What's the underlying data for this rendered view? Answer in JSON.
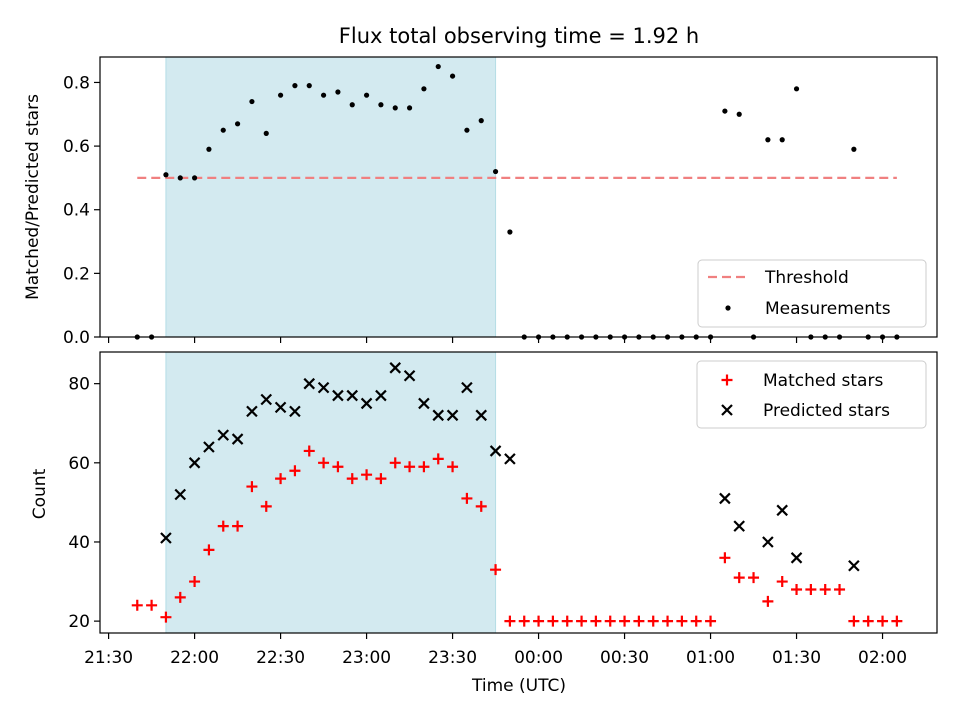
{
  "chart_data": [
    {
      "type": "scatter",
      "title": "Flux total observing time = 1.92 h",
      "ylabel": "Matched/Predicted stars",
      "xlabel": "",
      "xlim": [
        "21:27",
        "02:19"
      ],
      "ylim": [
        0,
        0.88
      ],
      "yticks": [
        "0.0",
        "0.2",
        "0.4",
        "0.6",
        "0.8"
      ],
      "shaded_span": {
        "start": "21:50",
        "end": "23:45",
        "color": "#d3eaf0"
      },
      "threshold": {
        "name": "Threshold",
        "y": 0.5,
        "x_start": "21:40",
        "x_end": "02:05",
        "color": "#f08080"
      },
      "series": [
        {
          "name": "Measurements",
          "color": "#000000",
          "points": [
            [
              "21:40",
              0.0
            ],
            [
              "21:45",
              0.0
            ],
            [
              "21:50",
              0.51
            ],
            [
              "21:55",
              0.5
            ],
            [
              "22:00",
              0.5
            ],
            [
              "22:05",
              0.59
            ],
            [
              "22:10",
              0.65
            ],
            [
              "22:15",
              0.67
            ],
            [
              "22:20",
              0.74
            ],
            [
              "22:25",
              0.64
            ],
            [
              "22:30",
              0.76
            ],
            [
              "22:35",
              0.79
            ],
            [
              "22:40",
              0.79
            ],
            [
              "22:45",
              0.76
            ],
            [
              "22:50",
              0.77
            ],
            [
              "22:55",
              0.73
            ],
            [
              "23:00",
              0.76
            ],
            [
              "23:05",
              0.73
            ],
            [
              "23:10",
              0.72
            ],
            [
              "23:15",
              0.72
            ],
            [
              "23:20",
              0.78
            ],
            [
              "23:25",
              0.85
            ],
            [
              "23:30",
              0.82
            ],
            [
              "23:35",
              0.65
            ],
            [
              "23:40",
              0.68
            ],
            [
              "23:45",
              0.52
            ],
            [
              "23:50",
              0.33
            ],
            [
              "23:55",
              0.0
            ],
            [
              "00:00",
              0.0
            ],
            [
              "00:05",
              0.0
            ],
            [
              "00:10",
              0.0
            ],
            [
              "00:15",
              0.0
            ],
            [
              "00:20",
              0.0
            ],
            [
              "00:25",
              0.0
            ],
            [
              "00:30",
              0.0
            ],
            [
              "00:35",
              0.0
            ],
            [
              "00:40",
              0.0
            ],
            [
              "00:45",
              0.0
            ],
            [
              "00:50",
              0.0
            ],
            [
              "00:55",
              0.0
            ],
            [
              "01:00",
              0.0
            ],
            [
              "01:05",
              0.71
            ],
            [
              "01:10",
              0.7
            ],
            [
              "01:15",
              0.0
            ],
            [
              "01:20",
              0.62
            ],
            [
              "01:25",
              0.62
            ],
            [
              "01:30",
              0.78
            ],
            [
              "01:35",
              0.0
            ],
            [
              "01:40",
              0.0
            ],
            [
              "01:45",
              0.0
            ],
            [
              "01:50",
              0.59
            ],
            [
              "01:55",
              0.0
            ],
            [
              "02:00",
              0.0
            ],
            [
              "02:05",
              0.0
            ]
          ]
        }
      ],
      "legend": {
        "position": "lower right",
        "entries": [
          "Threshold",
          "Measurements"
        ]
      }
    },
    {
      "type": "scatter",
      "title": "",
      "ylabel": "Count",
      "xlabel": "Time (UTC)",
      "xlim": [
        "21:27",
        "02:19"
      ],
      "ylim": [
        17,
        88
      ],
      "yticks": [
        "20",
        "40",
        "60",
        "80"
      ],
      "xticks": [
        "21:30",
        "22:00",
        "22:30",
        "23:00",
        "23:30",
        "00:00",
        "00:30",
        "01:00",
        "01:30",
        "02:00"
      ],
      "shaded_span": {
        "start": "21:50",
        "end": "23:45",
        "color": "#d3eaf0"
      },
      "series": [
        {
          "name": "Matched stars",
          "marker": "+",
          "color": "#ff0000",
          "points": [
            [
              "21:40",
              24
            ],
            [
              "21:45",
              24
            ],
            [
              "21:50",
              21
            ],
            [
              "21:55",
              26
            ],
            [
              "22:00",
              30
            ],
            [
              "22:05",
              38
            ],
            [
              "22:10",
              44
            ],
            [
              "22:15",
              44
            ],
            [
              "22:20",
              54
            ],
            [
              "22:25",
              49
            ],
            [
              "22:30",
              56
            ],
            [
              "22:35",
              58
            ],
            [
              "22:40",
              63
            ],
            [
              "22:45",
              60
            ],
            [
              "22:50",
              59
            ],
            [
              "22:55",
              56
            ],
            [
              "23:00",
              57
            ],
            [
              "23:05",
              56
            ],
            [
              "23:10",
              60
            ],
            [
              "23:15",
              59
            ],
            [
              "23:20",
              59
            ],
            [
              "23:25",
              61
            ],
            [
              "23:30",
              59
            ],
            [
              "23:35",
              51
            ],
            [
              "23:40",
              49
            ],
            [
              "23:45",
              33
            ],
            [
              "23:50",
              20
            ],
            [
              "23:55",
              20
            ],
            [
              "00:00",
              20
            ],
            [
              "00:05",
              20
            ],
            [
              "00:10",
              20
            ],
            [
              "00:15",
              20
            ],
            [
              "00:20",
              20
            ],
            [
              "00:25",
              20
            ],
            [
              "00:30",
              20
            ],
            [
              "00:35",
              20
            ],
            [
              "00:40",
              20
            ],
            [
              "00:45",
              20
            ],
            [
              "00:50",
              20
            ],
            [
              "00:55",
              20
            ],
            [
              "01:00",
              20
            ],
            [
              "01:05",
              36
            ],
            [
              "01:10",
              31
            ],
            [
              "01:15",
              31
            ],
            [
              "01:20",
              25
            ],
            [
              "01:25",
              30
            ],
            [
              "01:30",
              28
            ],
            [
              "01:35",
              28
            ],
            [
              "01:40",
              28
            ],
            [
              "01:45",
              28
            ],
            [
              "01:50",
              20
            ],
            [
              "01:55",
              20
            ],
            [
              "02:00",
              20
            ],
            [
              "02:05",
              20
            ]
          ]
        },
        {
          "name": "Predicted stars",
          "marker": "x",
          "color": "#000000",
          "points": [
            [
              "21:50",
              41
            ],
            [
              "21:55",
              52
            ],
            [
              "22:00",
              60
            ],
            [
              "22:05",
              64
            ],
            [
              "22:10",
              67
            ],
            [
              "22:15",
              66
            ],
            [
              "22:20",
              73
            ],
            [
              "22:25",
              76
            ],
            [
              "22:30",
              74
            ],
            [
              "22:35",
              73
            ],
            [
              "22:40",
              80
            ],
            [
              "22:45",
              79
            ],
            [
              "22:50",
              77
            ],
            [
              "22:55",
              77
            ],
            [
              "23:00",
              75
            ],
            [
              "23:05",
              77
            ],
            [
              "23:10",
              84
            ],
            [
              "23:15",
              82
            ],
            [
              "23:20",
              75
            ],
            [
              "23:25",
              72
            ],
            [
              "23:30",
              72
            ],
            [
              "23:35",
              79
            ],
            [
              "23:40",
              72
            ],
            [
              "23:45",
              63
            ],
            [
              "23:50",
              61
            ],
            [
              "01:05",
              51
            ],
            [
              "01:10",
              44
            ],
            [
              "01:20",
              40
            ],
            [
              "01:25",
              48
            ],
            [
              "01:30",
              36
            ],
            [
              "01:50",
              34
            ]
          ]
        }
      ],
      "legend": {
        "position": "upper right",
        "entries": [
          "Matched stars",
          "Predicted stars"
        ]
      }
    }
  ]
}
